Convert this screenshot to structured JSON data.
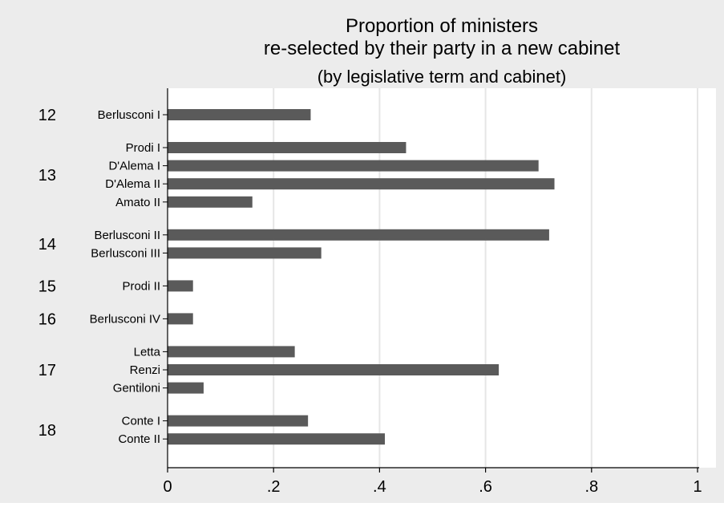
{
  "chart_data": {
    "type": "bar",
    "orientation": "horizontal",
    "title": "Proportion of ministers",
    "title_line2": "re-selected by their party in a new cabinet",
    "subtitle": "(by legislative term and cabinet)",
    "xlim": [
      0,
      1
    ],
    "x_ticks": [
      "0",
      ".2",
      ".4",
      ".6",
      ".8",
      "1"
    ],
    "x_tick_values": [
      0,
      0.2,
      0.4,
      0.6,
      0.8,
      1
    ],
    "grid": true,
    "bar_color": "#5a5a5a",
    "background_color": "#ececec",
    "plot_background_color": "#ffffff",
    "gridline_color": "#e6e6e6",
    "groups": [
      {
        "label": "12",
        "cabinets": [
          {
            "name": "Berlusconi I",
            "value": 0.27
          }
        ]
      },
      {
        "label": "13",
        "cabinets": [
          {
            "name": "Prodi I",
            "value": 0.45
          },
          {
            "name": "D'Alema I",
            "value": 0.7
          },
          {
            "name": "D'Alema II",
            "value": 0.73
          },
          {
            "name": "Amato II",
            "value": 0.16
          }
        ]
      },
      {
        "label": "14",
        "cabinets": [
          {
            "name": "Berlusconi II",
            "value": 0.72
          },
          {
            "name": "Berlusconi III",
            "value": 0.29
          }
        ]
      },
      {
        "label": "15",
        "cabinets": [
          {
            "name": "Prodi II",
            "value": 0.048
          }
        ]
      },
      {
        "label": "16",
        "cabinets": [
          {
            "name": "Berlusconi IV",
            "value": 0.048
          }
        ]
      },
      {
        "label": "17",
        "cabinets": [
          {
            "name": "Letta",
            "value": 0.24
          },
          {
            "name": "Renzi",
            "value": 0.625
          },
          {
            "name": "Gentiloni",
            "value": 0.068
          }
        ]
      },
      {
        "label": "18",
        "cabinets": [
          {
            "name": "Conte I",
            "value": 0.265
          },
          {
            "name": "Conte II",
            "value": 0.41
          }
        ]
      }
    ]
  }
}
